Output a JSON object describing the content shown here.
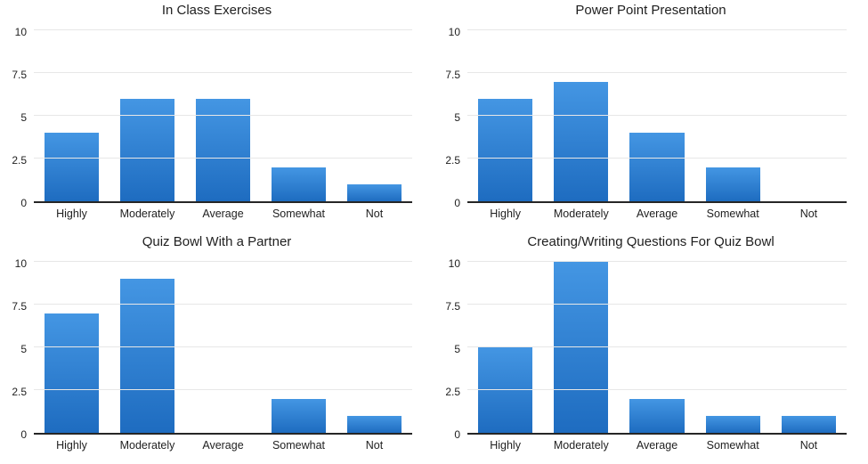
{
  "chart_data": [
    {
      "type": "bar",
      "title": "In Class Exercises",
      "categories": [
        "Highly",
        "Moderately",
        "Average",
        "Somewhat",
        "Not"
      ],
      "values": [
        4,
        6,
        6,
        2,
        1
      ],
      "xlabel": "",
      "ylabel": "",
      "ylim": [
        0,
        10
      ],
      "yticks": [
        0,
        2.5,
        5,
        7.5,
        10
      ],
      "grid": true,
      "legend": false
    },
    {
      "type": "bar",
      "title": "Power Point Presentation",
      "categories": [
        "Highly",
        "Moderately",
        "Average",
        "Somewhat",
        "Not"
      ],
      "values": [
        6,
        7,
        4,
        2,
        0
      ],
      "xlabel": "",
      "ylabel": "",
      "ylim": [
        0,
        10
      ],
      "yticks": [
        0,
        2.5,
        5,
        7.5,
        10
      ],
      "grid": true,
      "legend": false
    },
    {
      "type": "bar",
      "title": "Quiz Bowl With a Partner",
      "categories": [
        "Highly",
        "Moderately",
        "Average",
        "Somewhat",
        "Not"
      ],
      "values": [
        7,
        9,
        0,
        2,
        1
      ],
      "xlabel": "",
      "ylabel": "",
      "ylim": [
        0,
        10
      ],
      "yticks": [
        0,
        2.5,
        5,
        7.5,
        10
      ],
      "grid": true,
      "legend": false
    },
    {
      "type": "bar",
      "title": "Creating/Writing Questions For Quiz Bowl",
      "categories": [
        "Highly",
        "Moderately",
        "Average",
        "Somewhat",
        "Not"
      ],
      "values": [
        5,
        10,
        2,
        1,
        1
      ],
      "xlabel": "",
      "ylabel": "",
      "ylim": [
        0,
        10
      ],
      "yticks": [
        0,
        2.5,
        5,
        7.5,
        10
      ],
      "grid": true,
      "legend": false
    }
  ],
  "style": {
    "bar_gradient_top": "#4496e3",
    "bar_gradient_bottom": "#1e6cc0",
    "gridline_color": "#e7e7e7",
    "axis_line_color": "#262626",
    "text_color": "#1f1f1f",
    "background": "#ffffff"
  }
}
